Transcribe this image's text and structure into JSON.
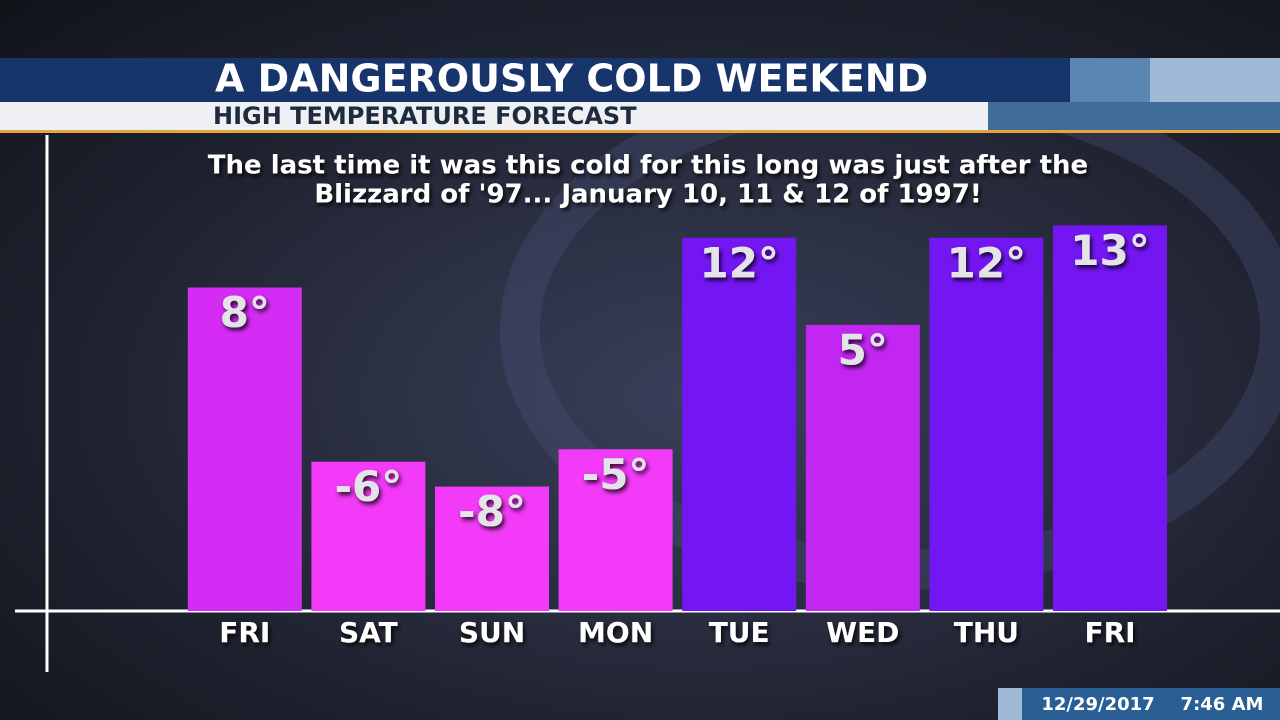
{
  "chart_data": {
    "type": "bar",
    "title": "A DANGEROUSLY COLD WEEKEND",
    "subtitle": "HIGH TEMPERATURE FORECAST",
    "annotation": [
      "The last time it was this cold for this long was just after the",
      "Blizzard of '97... January 10, 11 & 12 of 1997!"
    ],
    "categories": [
      "FRI",
      "SAT",
      "SUN",
      "MON",
      "TUE",
      "WED",
      "THU",
      "FRI"
    ],
    "values": [
      8,
      -6,
      -8,
      -5,
      12,
      5,
      12,
      13
    ],
    "value_labels": [
      "8°",
      "-6°",
      "-8°",
      "-5°",
      "12°",
      "5°",
      "12°",
      "13°"
    ],
    "colors": [
      "#d42cf4",
      "#f23af8",
      "#f23af8",
      "#f23af8",
      "#7316f2",
      "#c426f2",
      "#7316f2",
      "#7316f2"
    ],
    "ylim": [
      -18,
      16
    ],
    "date": "12/29/2017",
    "time": "7:46 AM"
  }
}
